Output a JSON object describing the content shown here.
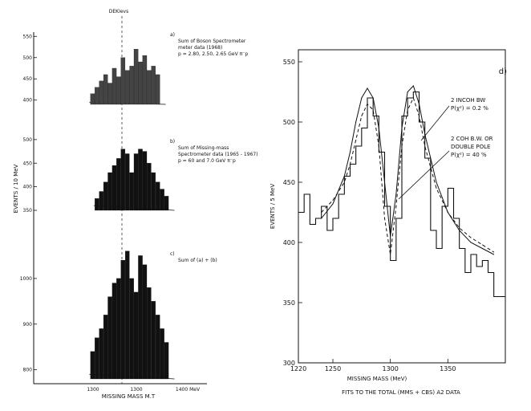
{
  "figure": {
    "note_left_top": "DEKIevs",
    "left_xaxis_label": "MISSING MASS M.T",
    "left_yaxis_label": "EVENTS / 10 MeV",
    "left_x_ticks": [
      "1300",
      "1300",
      "1400 MeV"
    ],
    "right_panel_tag": "d)",
    "right_xaxis_label": "MISSING MASS (MeV)",
    "right_yaxis_label": "EVENTS / 5 MeV",
    "right_caption": "FITS TO THE TOTAL (MMS + CBS) A2 DATA",
    "annotation_1_line1": "2 INCOH BW",
    "annotation_1_line2": "P(χ²) = 0.2 %",
    "annotation_2_line1": "2 COH B.W. OR",
    "annotation_2_line2": "DOUBLE POLE",
    "annotation_2_line3": "P(χ²) = 40 %"
  },
  "panels_text": {
    "a": {
      "tag": "a)",
      "line1": "Sum of Boson Spectrometer",
      "line2": "meter data (1968)",
      "line3": "p = 2.80, 2.50, 2.65 GeV π⁻p"
    },
    "b": {
      "tag": "b)",
      "line1": "Sum of Missing-mass",
      "line2": "Spectrometer data (1965 - 1967)",
      "line3": "p = 60 and 7.0 GeV π⁻p"
    },
    "c": {
      "tag": "c)",
      "line1": "Sum of (a) + (b)"
    }
  },
  "chart_data": [
    {
      "type": "bar",
      "panel": "a",
      "xlabel": "",
      "ylabel": "",
      "y_ticks": [
        "550",
        "500",
        "450",
        "400"
      ],
      "xlim": [
        1250,
        1370
      ],
      "bins": [
        1255,
        1260,
        1265,
        1270,
        1275,
        1280,
        1285,
        1290,
        1295,
        1300,
        1305,
        1310,
        1315,
        1320,
        1325,
        1330
      ],
      "values": [
        415,
        430,
        445,
        460,
        440,
        475,
        455,
        500,
        470,
        480,
        520,
        490,
        505,
        470,
        480,
        460
      ]
    },
    {
      "type": "bar",
      "panel": "b",
      "xlabel": "",
      "ylabel": "",
      "y_ticks": [
        "500",
        "450",
        "400",
        "350"
      ],
      "xlim": [
        1250,
        1370
      ],
      "bins": [
        1260,
        1265,
        1270,
        1275,
        1280,
        1285,
        1290,
        1295,
        1300,
        1305,
        1310,
        1315,
        1320,
        1325,
        1330,
        1335,
        1340
      ],
      "values": [
        375,
        390,
        410,
        430,
        445,
        460,
        480,
        470,
        430,
        470,
        480,
        475,
        450,
        430,
        410,
        395,
        380
      ]
    },
    {
      "type": "bar",
      "panel": "c",
      "xlabel": "",
      "ylabel": "",
      "y_ticks": [
        "1000",
        "900",
        "800"
      ],
      "xlim": [
        1250,
        1370
      ],
      "bins": [
        1255,
        1260,
        1265,
        1270,
        1275,
        1280,
        1285,
        1290,
        1295,
        1300,
        1305,
        1310,
        1315,
        1320,
        1325,
        1330,
        1335,
        1340
      ],
      "values": [
        840,
        870,
        890,
        920,
        960,
        990,
        1000,
        1040,
        1060,
        1000,
        970,
        1050,
        1030,
        980,
        950,
        920,
        890,
        860
      ]
    },
    {
      "type": "line",
      "panel": "d",
      "title": "",
      "xlabel": "MISSING MASS (MeV)",
      "ylabel": "EVENTS / 5 MeV",
      "xlim": [
        1220,
        1400
      ],
      "ylim": [
        300,
        560
      ],
      "x_ticks": [
        1220,
        1250,
        1300,
        1350
      ],
      "y_ticks": [
        300,
        350,
        400,
        450,
        500,
        550
      ],
      "histogram": {
        "x": [
          1220,
          1225,
          1230,
          1235,
          1240,
          1245,
          1250,
          1255,
          1260,
          1265,
          1270,
          1275,
          1280,
          1285,
          1290,
          1295,
          1300,
          1305,
          1310,
          1315,
          1320,
          1325,
          1330,
          1335,
          1340,
          1345,
          1350,
          1355,
          1360,
          1365,
          1370,
          1375,
          1380,
          1385,
          1390,
          1395
        ],
        "values": [
          425,
          440,
          415,
          420,
          430,
          410,
          420,
          440,
          455,
          465,
          480,
          495,
          520,
          505,
          475,
          430,
          385,
          420,
          505,
          520,
          525,
          500,
          470,
          410,
          395,
          430,
          445,
          420,
          395,
          375,
          390,
          380,
          385,
          375,
          355,
          355
        ]
      },
      "series": [
        {
          "name": "2 INCOH BW",
          "style": "solid",
          "x": [
            1240,
            1250,
            1260,
            1265,
            1270,
            1275,
            1280,
            1285,
            1290,
            1295,
            1300,
            1305,
            1310,
            1315,
            1320,
            1325,
            1330,
            1340,
            1350,
            1360,
            1370,
            1380,
            1390
          ],
          "y": [
            420,
            432,
            455,
            475,
            500,
            520,
            528,
            520,
            495,
            450,
            405,
            440,
            495,
            525,
            530,
            515,
            490,
            450,
            425,
            410,
            400,
            395,
            390
          ]
        },
        {
          "name": "2 COH B.W. OR DOUBLE POLE",
          "style": "dashed",
          "x": [
            1240,
            1250,
            1260,
            1265,
            1270,
            1275,
            1280,
            1285,
            1290,
            1295,
            1300,
            1305,
            1310,
            1315,
            1320,
            1325,
            1330,
            1340,
            1350,
            1360,
            1370,
            1380,
            1390
          ],
          "y": [
            425,
            435,
            450,
            465,
            485,
            505,
            515,
            510,
            480,
            420,
            390,
            430,
            480,
            510,
            520,
            505,
            480,
            445,
            425,
            412,
            404,
            398,
            392
          ]
        }
      ]
    }
  ]
}
